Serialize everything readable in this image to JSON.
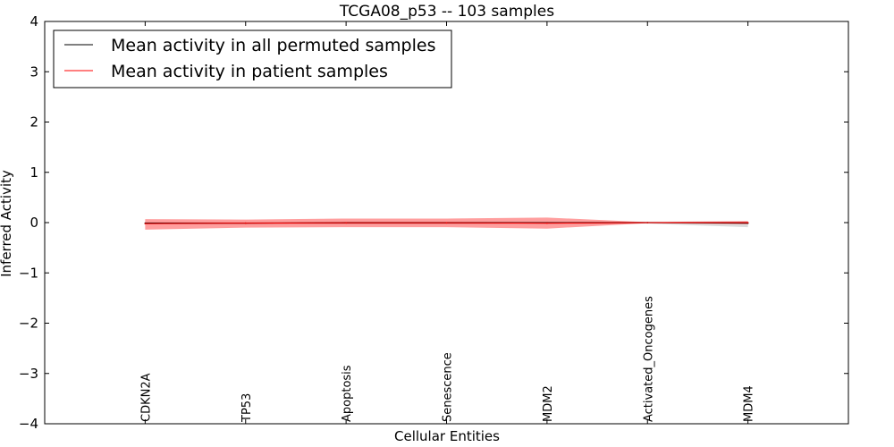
{
  "chart_data": {
    "type": "line",
    "title": "TCGA08_p53 -- 103 samples",
    "xlabel": "Cellular Entities",
    "ylabel": "Inferred Activity",
    "ylim": [
      -4,
      4
    ],
    "yticks": [
      4,
      3,
      2,
      1,
      0,
      -1,
      -2,
      -3,
      -4
    ],
    "ytick_labels": [
      "4",
      "3",
      "2",
      "1",
      "0",
      "−1",
      "−2",
      "−3",
      "−4"
    ],
    "xlim": [
      -1,
      7
    ],
    "grid": false,
    "legend_position": "top-left",
    "categories": [
      "CDKN2A",
      "TP53",
      "Apoptosis",
      "Senescence",
      "MDM2",
      "Activated_Oncogenes",
      "MDM4"
    ],
    "series": [
      {
        "name": "Mean activity in all permuted samples",
        "color": "#000000",
        "values": [
          -0.01,
          -0.01,
          -0.005,
          -0.005,
          -0.005,
          0.0,
          -0.01
        ],
        "band_lower": [
          -0.03,
          -0.03,
          -0.03,
          -0.03,
          -0.03,
          -0.02,
          -0.09
        ],
        "band_upper": [
          0.01,
          0.01,
          0.02,
          0.02,
          0.02,
          0.02,
          0.03
        ]
      },
      {
        "name": "Mean activity in patient samples",
        "color": "#ff0000",
        "values": [
          -0.02,
          -0.01,
          -0.005,
          -0.005,
          -0.01,
          0.0,
          0.0
        ],
        "band_lower": [
          -0.14,
          -0.1,
          -0.09,
          -0.09,
          -0.12,
          -0.01,
          -0.03
        ],
        "band_upper": [
          0.07,
          0.06,
          0.08,
          0.08,
          0.1,
          0.01,
          0.03
        ]
      }
    ]
  }
}
